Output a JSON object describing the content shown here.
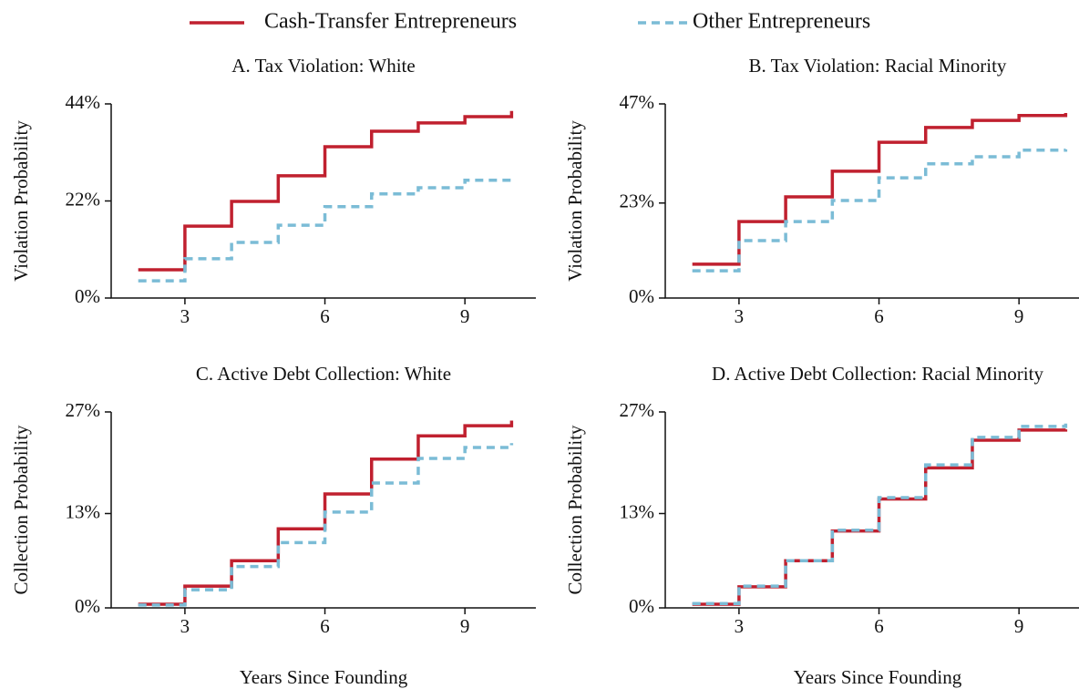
{
  "legend_series": [
    0,
    1
  ],
  "chart_data": [
    {
      "type": "step",
      "title": "A. Tax Violation: White",
      "ylabel": "Violation Probability",
      "x": [
        2,
        3,
        4,
        5,
        6,
        7,
        8,
        9,
        10
      ],
      "series": [
        {
          "name": "Cash-Transfer Entrepreneurs",
          "color": "#c0202f",
          "values": [
            6.4,
            16.3,
            21.9,
            27.7,
            34.3,
            37.8,
            39.7,
            41.1,
            42.4
          ]
        },
        {
          "name": "Other Entrepreneurs",
          "color": "#7bbcd6",
          "values": [
            3.9,
            8.9,
            12.6,
            16.5,
            20.7,
            23.6,
            25.0,
            26.7,
            26.9
          ]
        }
      ],
      "xlim": [
        1.42,
        10.52
      ],
      "xticks": [
        3,
        6,
        9
      ],
      "ylim": [
        0,
        44
      ],
      "yticks": [
        {
          "value": 0,
          "label": "0%"
        },
        {
          "value": 22,
          "label": "22%"
        },
        {
          "value": 44,
          "label": "44%"
        }
      ]
    },
    {
      "type": "step",
      "title": "B. Tax Violation: Racial Minority",
      "ylabel": "Violation Probability",
      "x": [
        2,
        3,
        4,
        5,
        6,
        7,
        8,
        9,
        10
      ],
      "series": [
        {
          "color": "#c0202f",
          "values": [
            8.2,
            18.5,
            24.5,
            30.7,
            37.7,
            41.3,
            43.0,
            44.2,
            44.8
          ]
        },
        {
          "color": "#7bbcd6",
          "values": [
            6.6,
            13.9,
            18.5,
            23.6,
            29.1,
            32.5,
            34.2,
            35.8,
            36.0
          ]
        }
      ],
      "xlim": [
        1.42,
        10.52
      ],
      "xticks": [
        3,
        6,
        9
      ],
      "ylim": [
        0,
        47
      ],
      "yticks": [
        {
          "value": 0,
          "label": "0%"
        },
        {
          "value": 23,
          "label": "23%"
        },
        {
          "value": 47,
          "label": "47%"
        }
      ]
    },
    {
      "type": "step",
      "title": "C. Active Debt Collection: White",
      "ylabel": "Collection Probability",
      "xlabel": "Years Since Founding",
      "x": [
        2,
        3,
        4,
        5,
        6,
        7,
        8,
        9,
        10
      ],
      "series": [
        {
          "color": "#c0202f",
          "values": [
            0.5,
            3.0,
            6.5,
            10.9,
            15.7,
            20.5,
            23.7,
            25.1,
            25.8
          ]
        },
        {
          "color": "#7bbcd6",
          "values": [
            0.4,
            2.5,
            5.7,
            9.0,
            13.2,
            17.2,
            20.6,
            22.1,
            22.7
          ]
        }
      ],
      "xlim": [
        1.42,
        10.52
      ],
      "xticks": [
        3,
        6,
        9
      ],
      "ylim": [
        0,
        27
      ],
      "yticks": [
        {
          "value": 0,
          "label": "0%"
        },
        {
          "value": 13,
          "label": "13%"
        },
        {
          "value": 27,
          "label": "27%"
        }
      ]
    },
    {
      "type": "step",
      "title": "D. Active Debt Collection: Racial Minority",
      "ylabel": "Collection Probability",
      "xlabel": "Years Since Founding",
      "x": [
        2,
        3,
        4,
        5,
        6,
        7,
        8,
        9,
        10
      ],
      "series": [
        {
          "color": "#c0202f",
          "values": [
            0.5,
            2.9,
            6.5,
            10.6,
            15.0,
            19.3,
            23.1,
            24.5,
            24.6
          ]
        },
        {
          "color": "#7bbcd6",
          "values": [
            0.6,
            3.0,
            6.5,
            10.7,
            15.2,
            19.7,
            23.5,
            25.0,
            25.4
          ]
        }
      ],
      "xlim": [
        1.42,
        10.52
      ],
      "xticks": [
        3,
        6,
        9
      ],
      "ylim": [
        0,
        27
      ],
      "yticks": [
        {
          "value": 0,
          "label": "0%"
        },
        {
          "value": 13,
          "label": "13%"
        },
        {
          "value": 27,
          "label": "27%"
        }
      ]
    }
  ]
}
